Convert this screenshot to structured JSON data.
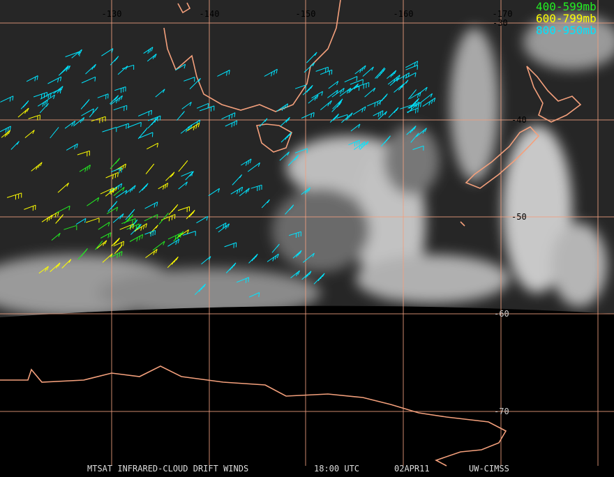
{
  "map": {
    "longitude_labels": [
      "-130",
      "-140",
      "-150",
      "-160",
      "-170"
    ],
    "latitude_labels": [
      "-30",
      "-40",
      "-50",
      "-60",
      "-70"
    ],
    "legend": [
      "400-599mb",
      "600-799mb",
      "800-950mb"
    ],
    "footer": [
      "MTSAT INFRARED-CLOUD DRIFT WINDS",
      "18:00 UTC",
      "02APR11",
      "UW-CIMSS"
    ]
  }
}
